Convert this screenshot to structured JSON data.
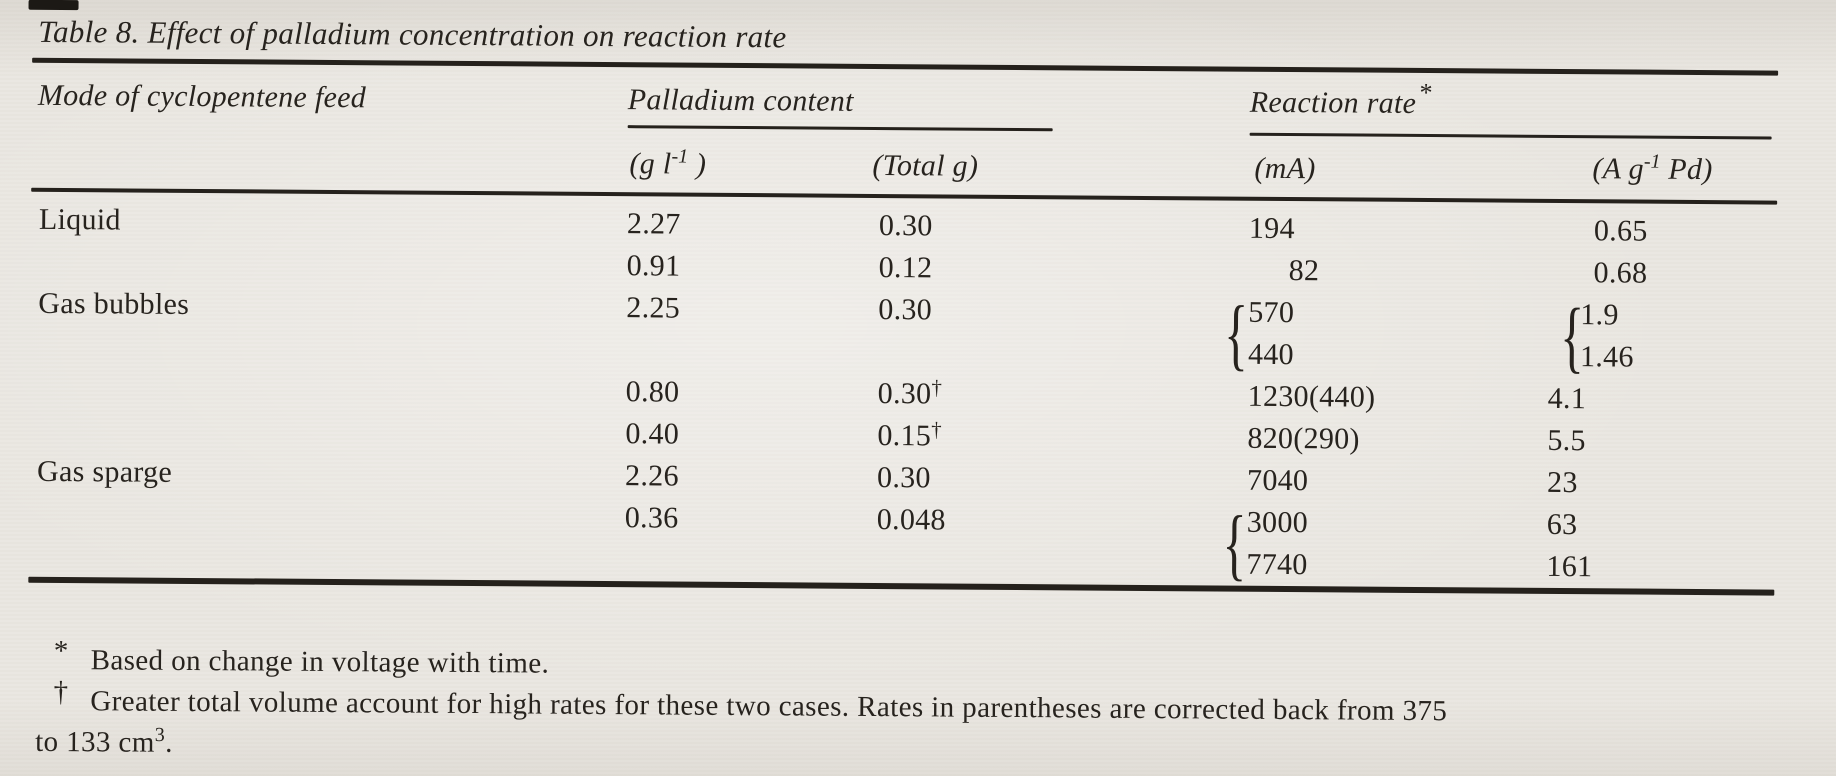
{
  "document": {
    "title": "Table 8. Effect of palladium concentration on reaction rate",
    "colors": {
      "paper": "#eae7e1",
      "ink": "#27231e",
      "rule": "#25211c"
    }
  },
  "table": {
    "brace_glyph": "{",
    "headers": {
      "mode": "Mode of cyclopentene feed",
      "palladium_group": "Palladium content",
      "reaction_group": "Reaction rate",
      "reaction_group_sup": "*",
      "unit_g_per_l": {
        "pre": "(g l",
        "sup": "-1",
        "post": " )"
      },
      "unit_total_g": "(Total g)",
      "unit_ma": "(mA)",
      "unit_a_per_g": {
        "pre": "(A g",
        "sup": "-1",
        "post": " Pd)"
      }
    },
    "rows": [
      {
        "mode": "Liquid",
        "g_per_l": "2.27",
        "total_g": "0.30",
        "total_g_sup": "",
        "rate_ma": "194",
        "rate_a": "0.65",
        "rate_indent": 2
      },
      {
        "mode": "",
        "g_per_l": "0.91",
        "total_g": "0.12",
        "total_g_sup": "",
        "rate_ma": "82",
        "rate_a": "0.68",
        "ma_indent": true,
        "rate_indent": 2
      },
      {
        "mode": "Gas bubbles",
        "g_per_l": "2.25",
        "total_g": "0.30",
        "total_g_sup": "",
        "rate_ma": "570",
        "rate_a": "1.9",
        "ma_brace": true,
        "rate_brace": true,
        "rate_indent": 1
      },
      {
        "mode": "",
        "g_per_l": "",
        "total_g": "",
        "total_g_sup": "",
        "rate_ma": "440",
        "rate_a": "1.46",
        "rate_indent": 1
      },
      {
        "mode": "",
        "g_per_l": "0.80",
        "total_g": "0.30",
        "total_g_sup": "†",
        "rate_ma": "1230(440)",
        "rate_a": "4.1"
      },
      {
        "mode": "",
        "g_per_l": "0.40",
        "total_g": "0.15",
        "total_g_sup": "†",
        "rate_ma": "820(290)",
        "rate_a": "5.5"
      },
      {
        "mode": "Gas sparge",
        "g_per_l": "2.26",
        "total_g": "0.30",
        "total_g_sup": "",
        "rate_ma": "7040",
        "rate_a": "23"
      },
      {
        "mode": "",
        "g_per_l": "0.36",
        "total_g": "0.048",
        "total_g_sup": "",
        "rate_ma": "3000",
        "rate_a": "63",
        "ma_brace": true
      },
      {
        "mode": "",
        "g_per_l": "",
        "total_g": "",
        "total_g_sup": "",
        "rate_ma": "7740",
        "rate_a": "161"
      }
    ]
  },
  "footnotes": {
    "asterisk": {
      "marker": "*",
      "text": "Based on change in voltage with time."
    },
    "dagger": {
      "marker": "†",
      "line1": "Greater total volume account for high rates for these two cases. Rates in parentheses are corrected back from 375",
      "line2_pre": "to 133 cm",
      "line2_sup": "3",
      "line2_post": "."
    }
  }
}
